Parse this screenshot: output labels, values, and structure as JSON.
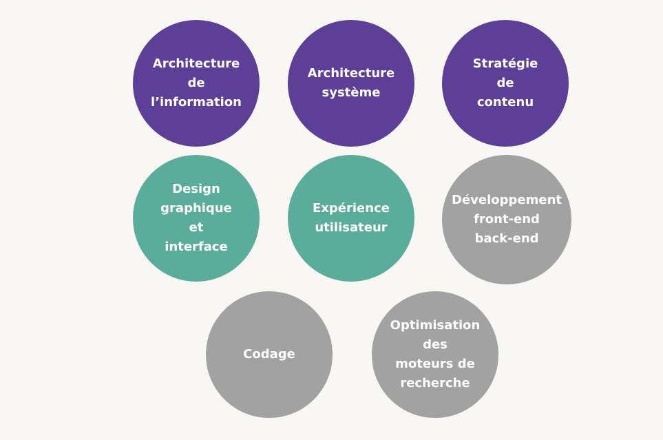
{
  "colors": {
    "background": "#f8f7f4",
    "purple": "#5e3f98",
    "teal": "#5aad9b",
    "gray": "#a2a2a2",
    "text": "#ffffff"
  },
  "circles": [
    {
      "label": "Architecture\nde\nl’information",
      "color": "purple"
    },
    {
      "label": "Architecture\nsystème",
      "color": "purple"
    },
    {
      "label": "Stratégie\nde\ncontenu",
      "color": "purple"
    },
    {
      "label": "Design\ngraphique\net\ninterface",
      "color": "teal"
    },
    {
      "label": "Expérience\nutilisateur",
      "color": "teal"
    },
    {
      "label": "Développement\nfront-end\nback-end",
      "color": "gray"
    },
    {
      "label": "Codage",
      "color": "gray"
    },
    {
      "label": "Optimisation\ndes\nmoteurs de\nrecherche",
      "color": "gray"
    }
  ]
}
